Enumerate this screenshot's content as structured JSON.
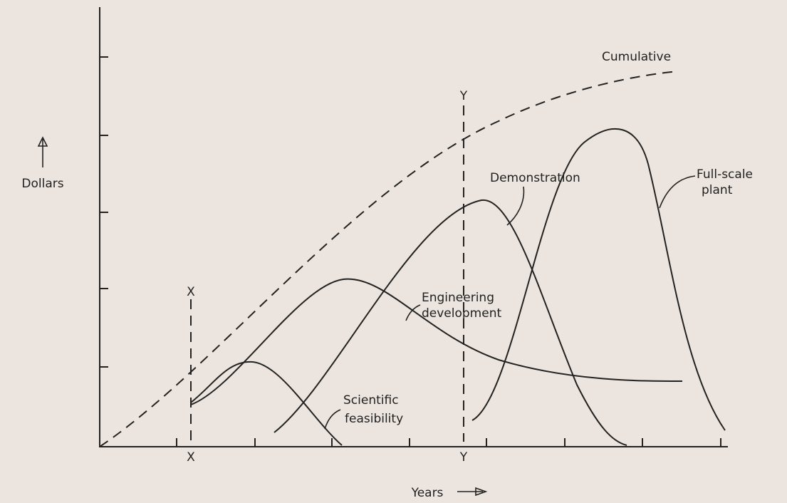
{
  "axes": {
    "y_label": "Dollars",
    "x_label": "Years"
  },
  "cumulative": "Cumulative",
  "markers": [
    {
      "top": "X",
      "bottom": "X"
    },
    {
      "top": "Y",
      "bottom": "Y"
    }
  ],
  "curves": [
    {
      "label": [
        "Scientific",
        "feasibility"
      ]
    },
    {
      "label": [
        "Engineering",
        "development"
      ]
    },
    {
      "label": [
        "Demonstration"
      ]
    },
    {
      "label": [
        "Full-scale",
        "plant"
      ]
    }
  ]
}
